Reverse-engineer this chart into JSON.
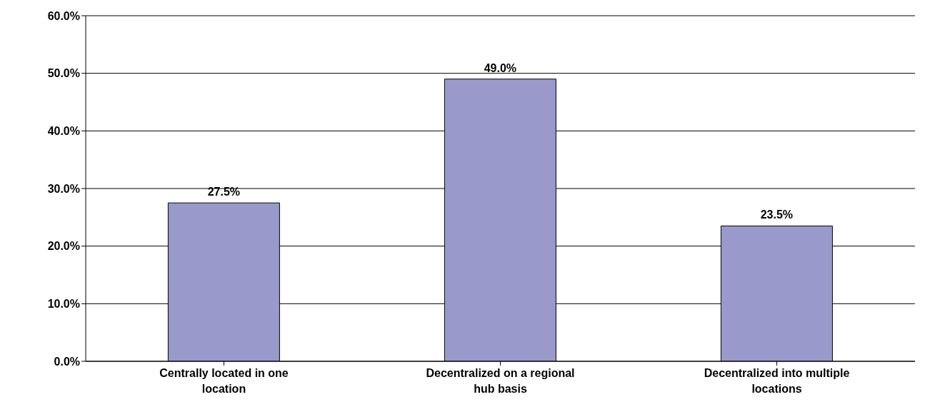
{
  "chart_data": {
    "type": "bar",
    "categories": [
      "Centrally located in one location",
      "Decentralized on a regional hub basis",
      "Decentralized into multiple locations"
    ],
    "values": [
      27.5,
      49.0,
      23.5
    ],
    "value_labels": [
      "27.5%",
      "49.0%",
      "23.5%"
    ],
    "color": "#9999cc",
    "ylim": [
      0,
      60
    ],
    "yticks": [
      {
        "value": 0,
        "label": "0.0%"
      },
      {
        "value": 10,
        "label": "10.0%"
      },
      {
        "value": 20,
        "label": "20.0%"
      },
      {
        "value": 30,
        "label": "30.0%"
      },
      {
        "value": 40,
        "label": "40.0%"
      },
      {
        "value": 50,
        "label": "50.0%"
      },
      {
        "value": 60,
        "label": "60.0%"
      }
    ],
    "grid": "y"
  }
}
